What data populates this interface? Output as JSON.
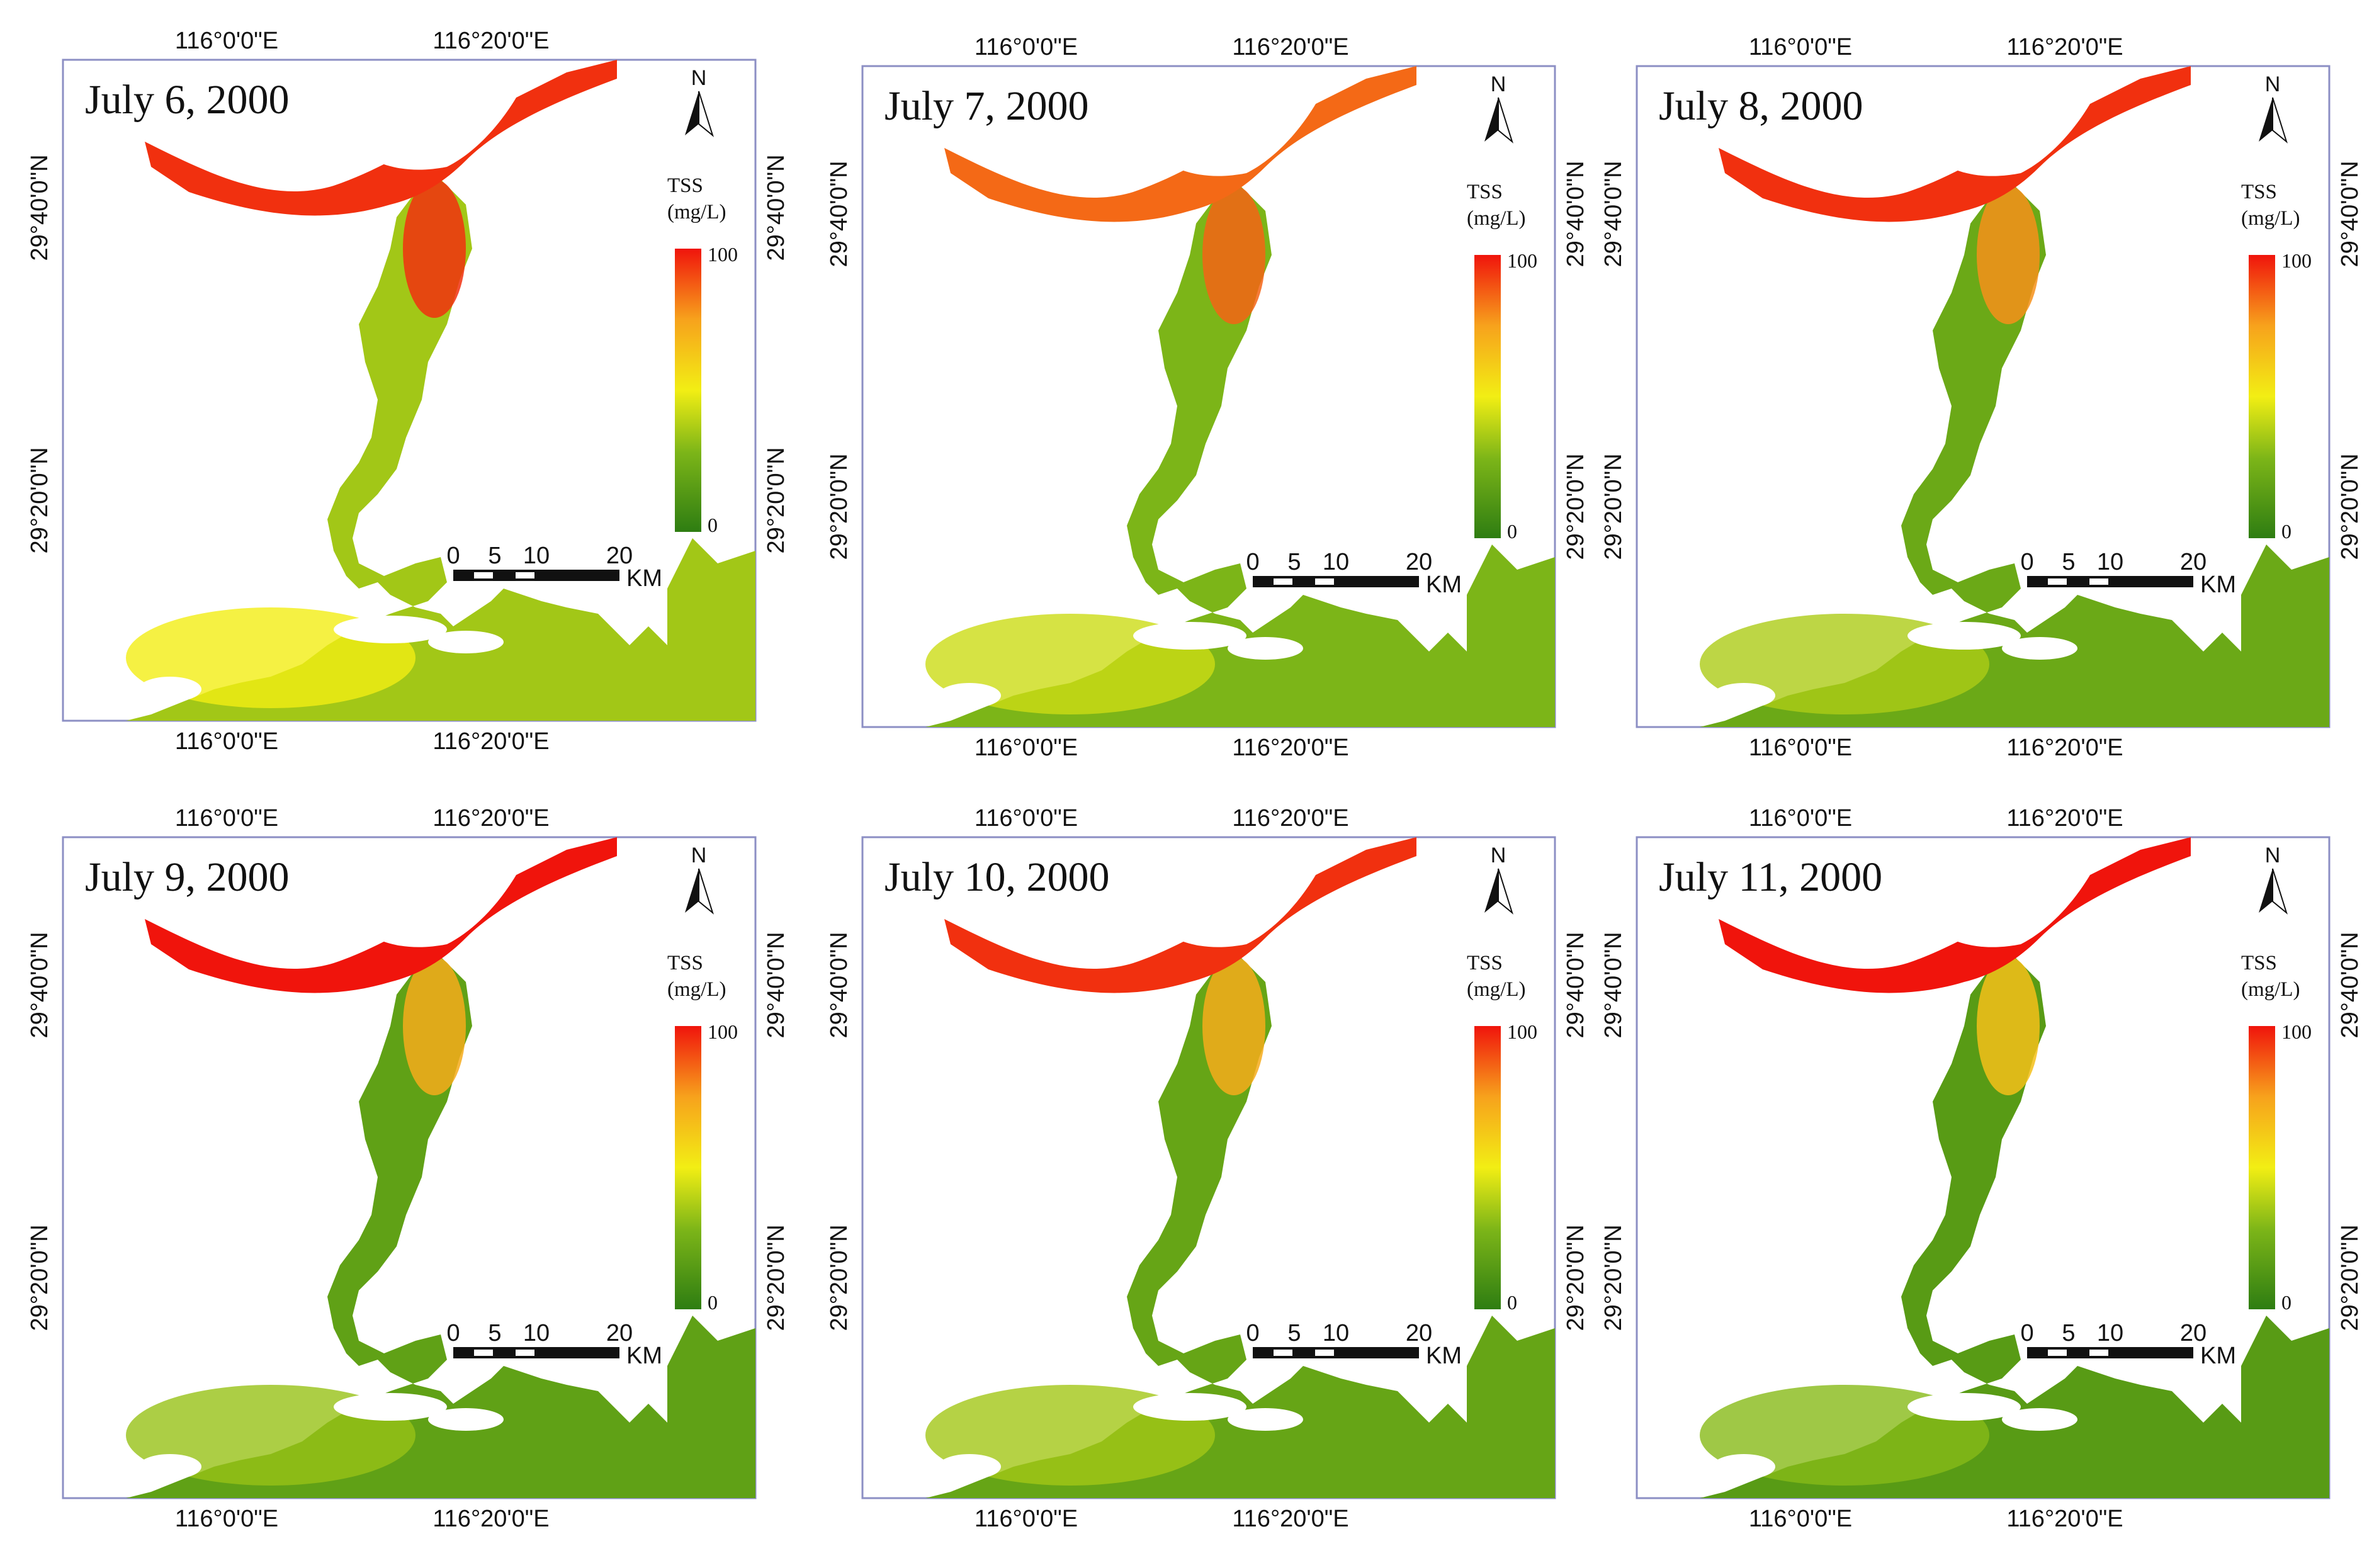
{
  "figure": {
    "legend_title": "TSS",
    "legend_unit": "(mg/L)",
    "legend_max": "100",
    "legend_min": "0",
    "north_label": "N",
    "scale_ticks": [
      "0",
      "5",
      "10",
      "20"
    ],
    "scale_unit": "KM",
    "lon_labels": [
      "116°0'0\"E",
      "116°20'0\"E"
    ],
    "lat_labels": [
      "29°40'0\"N",
      "29°20'0\"N"
    ],
    "colors": {
      "low": "#2e7d12",
      "mid_green": "#7cb518",
      "yellow": "#f2ee14",
      "orange": "#f7a21c",
      "high": "#f0140c",
      "frame": "#8c8fc4"
    },
    "panels": [
      {
        "date": "July 6, 2000",
        "mean_tss_fraction": 0.35,
        "river_tss_fraction": 0.95
      },
      {
        "date": "July 7, 2000",
        "mean_tss_fraction": 0.28,
        "river_tss_fraction": 0.85
      },
      {
        "date": "July 8, 2000",
        "mean_tss_fraction": 0.22,
        "river_tss_fraction": 0.95
      },
      {
        "date": "July 9, 2000",
        "mean_tss_fraction": 0.18,
        "river_tss_fraction": 1.0
      },
      {
        "date": "July 10, 2000",
        "mean_tss_fraction": 0.2,
        "river_tss_fraction": 0.95
      },
      {
        "date": "July 11, 2000",
        "mean_tss_fraction": 0.15,
        "river_tss_fraction": 1.0
      }
    ]
  }
}
